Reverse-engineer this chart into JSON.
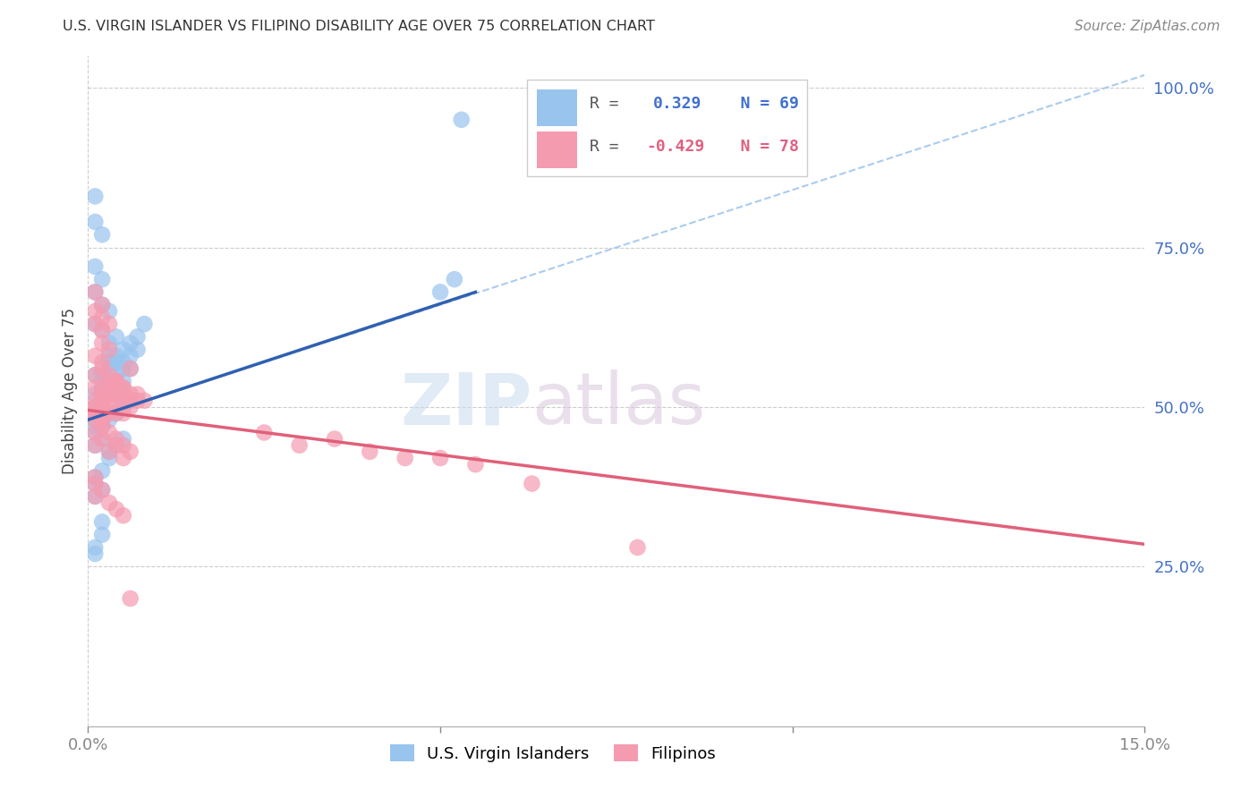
{
  "title": "U.S. VIRGIN ISLANDER VS FILIPINO DISABILITY AGE OVER 75 CORRELATION CHART",
  "source": "Source: ZipAtlas.com",
  "ylabel": "Disability Age Over 75",
  "xmin": 0.0,
  "xmax": 0.15,
  "ymin": 0.0,
  "ymax": 1.05,
  "yticks": [
    0.25,
    0.5,
    0.75,
    1.0
  ],
  "ytick_labels": [
    "25.0%",
    "50.0%",
    "75.0%",
    "100.0%"
  ],
  "xticks": [
    0.0,
    0.05,
    0.1,
    0.15
  ],
  "xtick_labels": [
    "0.0%",
    "",
    "",
    "15.0%"
  ],
  "color_blue": "#99C4EE",
  "color_pink": "#F59BB0",
  "line_blue": "#3060B0",
  "line_pink": "#E0607A",
  "line_dashed_color": "#AACCEE",
  "legend_r1_color": "#4070D0",
  "legend_r2_color": "#E06080",
  "legend_label1": "U.S. Virgin Islanders",
  "legend_label2": "Filipinos",
  "blue_x": [
    0.001,
    0.001,
    0.001,
    0.002,
    0.002,
    0.002,
    0.002,
    0.003,
    0.003,
    0.003,
    0.003,
    0.004,
    0.004,
    0.004,
    0.004,
    0.005,
    0.005,
    0.005,
    0.005,
    0.006,
    0.006,
    0.006,
    0.007,
    0.007,
    0.008,
    0.001,
    0.001,
    0.002,
    0.002,
    0.003,
    0.003,
    0.004,
    0.004,
    0.005,
    0.005,
    0.006,
    0.001,
    0.002,
    0.002,
    0.003,
    0.001,
    0.002,
    0.001,
    0.002,
    0.003,
    0.001,
    0.002,
    0.003,
    0.004,
    0.001,
    0.002,
    0.002,
    0.003,
    0.001,
    0.001,
    0.002,
    0.001,
    0.002,
    0.001,
    0.001,
    0.001,
    0.002,
    0.002,
    0.001,
    0.001,
    0.05,
    0.052,
    0.053,
    0.003
  ],
  "blue_y": [
    0.52,
    0.5,
    0.49,
    0.55,
    0.53,
    0.51,
    0.49,
    0.57,
    0.56,
    0.54,
    0.52,
    0.58,
    0.57,
    0.55,
    0.53,
    0.59,
    0.57,
    0.56,
    0.54,
    0.6,
    0.58,
    0.56,
    0.61,
    0.59,
    0.63,
    0.46,
    0.44,
    0.47,
    0.45,
    0.48,
    0.43,
    0.49,
    0.44,
    0.5,
    0.45,
    0.51,
    0.38,
    0.4,
    0.37,
    0.42,
    0.63,
    0.62,
    0.68,
    0.66,
    0.65,
    0.72,
    0.7,
    0.6,
    0.61,
    0.55,
    0.54,
    0.52,
    0.53,
    0.48,
    0.47,
    0.48,
    0.79,
    0.77,
    0.83,
    0.28,
    0.27,
    0.3,
    0.32,
    0.39,
    0.36,
    0.68,
    0.7,
    0.95,
    0.58
  ],
  "pink_x": [
    0.001,
    0.001,
    0.001,
    0.002,
    0.002,
    0.002,
    0.002,
    0.003,
    0.003,
    0.003,
    0.003,
    0.004,
    0.004,
    0.004,
    0.004,
    0.005,
    0.005,
    0.005,
    0.005,
    0.006,
    0.006,
    0.006,
    0.007,
    0.007,
    0.008,
    0.001,
    0.001,
    0.002,
    0.002,
    0.003,
    0.003,
    0.004,
    0.004,
    0.005,
    0.005,
    0.006,
    0.001,
    0.002,
    0.002,
    0.003,
    0.001,
    0.002,
    0.001,
    0.002,
    0.003,
    0.001,
    0.002,
    0.003,
    0.004,
    0.001,
    0.002,
    0.002,
    0.003,
    0.001,
    0.001,
    0.002,
    0.001,
    0.002,
    0.001,
    0.001,
    0.001,
    0.002,
    0.004,
    0.005,
    0.006,
    0.025,
    0.03,
    0.035,
    0.04,
    0.045,
    0.05,
    0.055,
    0.063,
    0.078,
    0.003,
    0.004,
    0.005,
    0.006
  ],
  "pink_y": [
    0.51,
    0.49,
    0.5,
    0.52,
    0.51,
    0.5,
    0.48,
    0.53,
    0.52,
    0.5,
    0.49,
    0.54,
    0.52,
    0.51,
    0.49,
    0.53,
    0.52,
    0.51,
    0.49,
    0.52,
    0.51,
    0.5,
    0.52,
    0.51,
    0.51,
    0.46,
    0.44,
    0.47,
    0.45,
    0.46,
    0.43,
    0.45,
    0.44,
    0.44,
    0.42,
    0.43,
    0.58,
    0.57,
    0.6,
    0.59,
    0.63,
    0.62,
    0.65,
    0.64,
    0.63,
    0.68,
    0.66,
    0.55,
    0.54,
    0.53,
    0.52,
    0.53,
    0.54,
    0.48,
    0.49,
    0.48,
    0.38,
    0.37,
    0.39,
    0.36,
    0.55,
    0.56,
    0.54,
    0.53,
    0.56,
    0.46,
    0.44,
    0.45,
    0.43,
    0.42,
    0.42,
    0.41,
    0.38,
    0.28,
    0.35,
    0.34,
    0.33,
    0.2
  ],
  "blue_line_x0": 0.0,
  "blue_line_y0": 0.48,
  "blue_line_x1": 0.055,
  "blue_line_y1": 0.68,
  "dashed_line_x0": 0.0,
  "dashed_line_y0": 0.48,
  "dashed_line_x1": 0.15,
  "dashed_line_y1": 1.02,
  "pink_line_x0": 0.0,
  "pink_line_y0": 0.495,
  "pink_line_x1": 0.15,
  "pink_line_y1": 0.285
}
